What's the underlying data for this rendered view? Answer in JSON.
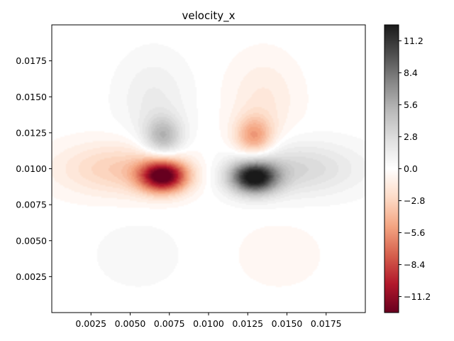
{
  "chart_data": {
    "type": "heatmap",
    "title": "velocity_x",
    "xlabel": "",
    "ylabel": "",
    "xlim": [
      0.0,
      0.02
    ],
    "ylim": [
      0.0,
      0.02
    ],
    "x_ticks": [
      "0.0025",
      "0.0050",
      "0.0075",
      "0.0100",
      "0.0125",
      "0.0150",
      "0.0175"
    ],
    "x_tick_values": [
      0.0025,
      0.005,
      0.0075,
      0.01,
      0.0125,
      0.015,
      0.0175
    ],
    "y_ticks": [
      "0.0025",
      "0.0050",
      "0.0075",
      "0.0100",
      "0.0125",
      "0.0150",
      "0.0175"
    ],
    "y_tick_values": [
      0.0025,
      0.005,
      0.0075,
      0.01,
      0.0125,
      0.015,
      0.0175
    ],
    "colormap": "RdGy",
    "colorbar": {
      "min": -12.6,
      "max": 12.6,
      "tick_values": [
        -11.2,
        -8.4,
        -5.6,
        -2.8,
        0.0,
        2.8,
        5.6,
        8.4,
        11.2
      ],
      "tick_labels": [
        "−11.2",
        "−8.4",
        "−5.6",
        "−2.8",
        "0.0",
        "2.8",
        "5.6",
        "8.4",
        "11.2"
      ]
    },
    "features": [
      {
        "kind": "min",
        "x": 0.0071,
        "y": 0.0095,
        "value": -12.4
      },
      {
        "kind": "max",
        "x": 0.0129,
        "y": 0.0094,
        "value": 12.4
      },
      {
        "kind": "max",
        "x": 0.0071,
        "y": 0.0122,
        "value": 5.0
      },
      {
        "kind": "min",
        "x": 0.0129,
        "y": 0.0122,
        "value": -5.0
      },
      {
        "kind": "max",
        "x": 0.0175,
        "y": 0.01,
        "value": 2.0
      },
      {
        "kind": "min",
        "x": 0.0025,
        "y": 0.01,
        "value": -2.0
      }
    ],
    "grid": false,
    "legend": "colorbar-right"
  }
}
